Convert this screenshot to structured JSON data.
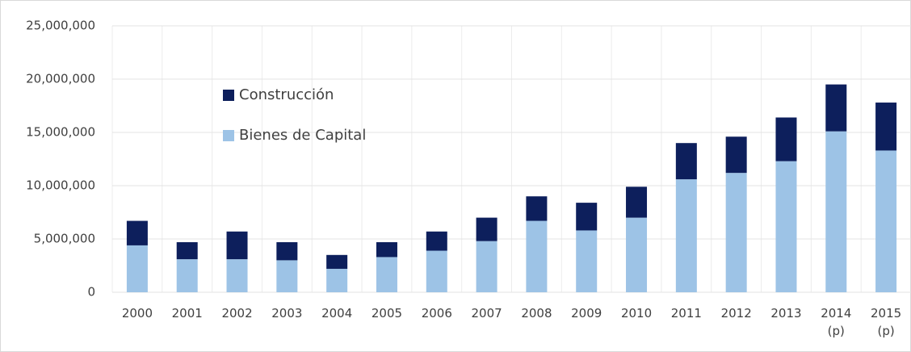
{
  "chart_data": {
    "type": "stacked_bar",
    "categories": [
      "2000",
      "2001",
      "2002",
      "2003",
      "2004",
      "2005",
      "2006",
      "2007",
      "2008",
      "2009",
      "2010",
      "2011",
      "2012",
      "2013",
      "2014\n(p)",
      "2015\n(p)"
    ],
    "series": [
      {
        "name": "Bienes de Capital",
        "color": "#9dc3e6",
        "values": [
          4400000,
          3100000,
          3100000,
          3000000,
          2200000,
          3300000,
          3900000,
          4800000,
          6700000,
          5800000,
          7000000,
          10600000,
          11200000,
          12300000,
          15100000,
          13300000
        ]
      },
      {
        "name": "Construcción",
        "color": "#0d1f5c",
        "values": [
          2300000,
          1600000,
          2600000,
          1700000,
          1300000,
          1400000,
          1800000,
          2200000,
          2300000,
          2600000,
          2900000,
          3400000,
          3400000,
          4100000,
          4400000,
          4500000
        ]
      }
    ],
    "ylim": [
      0,
      25000000
    ],
    "yticks": [
      {
        "value": 0,
        "label": "0"
      },
      {
        "value": 5000000,
        "label": "5,000,000"
      },
      {
        "value": 10000000,
        "label": "10,000,000"
      },
      {
        "value": 15000000,
        "label": "15,000,000"
      },
      {
        "value": 20000000,
        "label": "20,000,000"
      },
      {
        "value": 25000000,
        "label": "25,000,000"
      }
    ],
    "grid": true,
    "legend": "upper left"
  }
}
